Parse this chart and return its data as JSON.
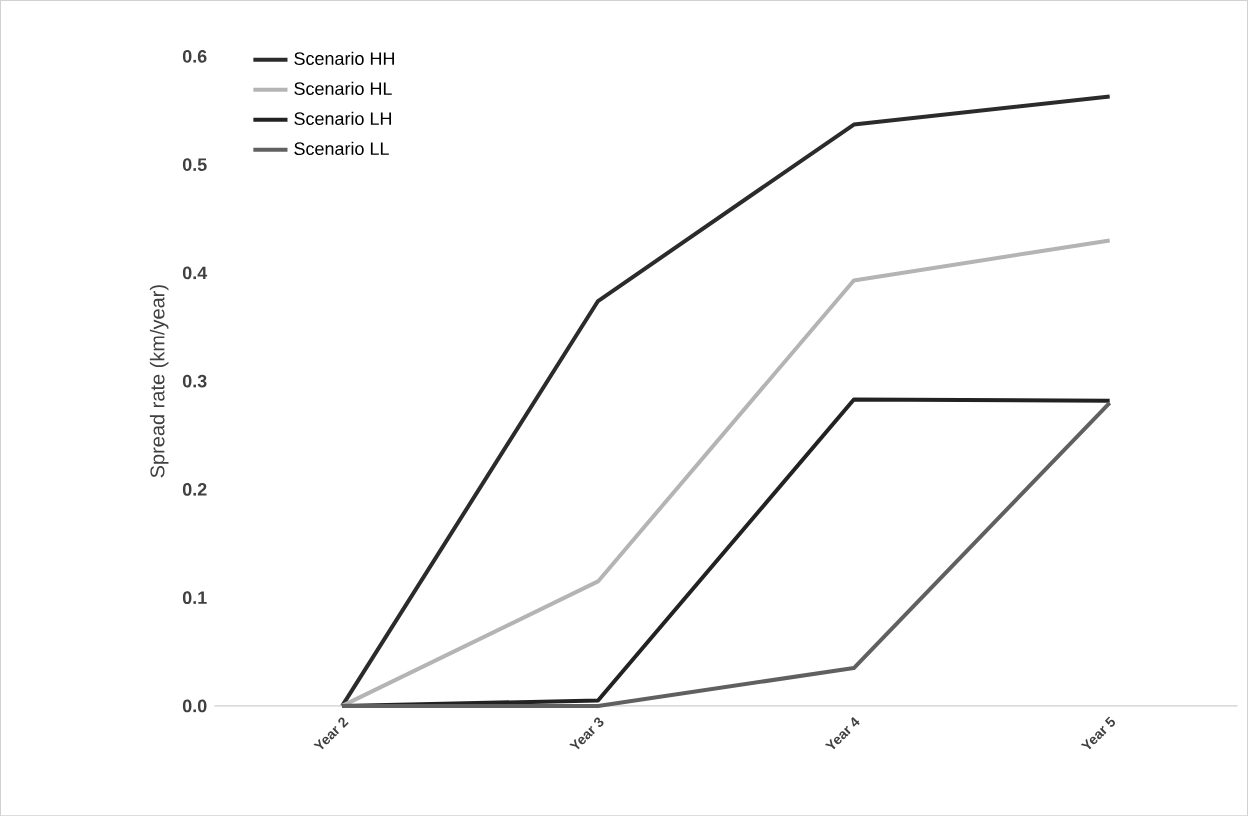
{
  "chart_data": {
    "type": "line",
    "ylabel": "Spread rate (km/year)",
    "categories": [
      "Year 2",
      "Year 3",
      "Year 4",
      "Year 5"
    ],
    "series": [
      {
        "name": "Scenario HH",
        "color": "#2b2b2b",
        "values": [
          0,
          0.374,
          0.537,
          0.563
        ]
      },
      {
        "name": "Scenario HL",
        "color": "#b4b4b4",
        "values": [
          0,
          0.115,
          0.393,
          0.43
        ]
      },
      {
        "name": "Scenario LH",
        "color": "#222222",
        "values": [
          0,
          0.005,
          0.283,
          0.282
        ]
      },
      {
        "name": "Scenario LL",
        "color": "#606060",
        "values": [
          0,
          0,
          0.035,
          0.28
        ]
      }
    ],
    "ylim": [
      0,
      0.6
    ],
    "yticks": [
      {
        "value": 0,
        "label": "0.0"
      },
      {
        "value": 0.1,
        "label": "0.1"
      },
      {
        "value": 0.2,
        "label": "0.2"
      },
      {
        "value": 0.3,
        "label": "0.3"
      },
      {
        "value": 0.4,
        "label": "0.4"
      },
      {
        "value": 0.5,
        "label": "0.5"
      },
      {
        "value": 0.6,
        "label": "0.6"
      }
    ],
    "legend": "top left",
    "grid": false,
    "marker": "none",
    "line_style": "solid"
  }
}
